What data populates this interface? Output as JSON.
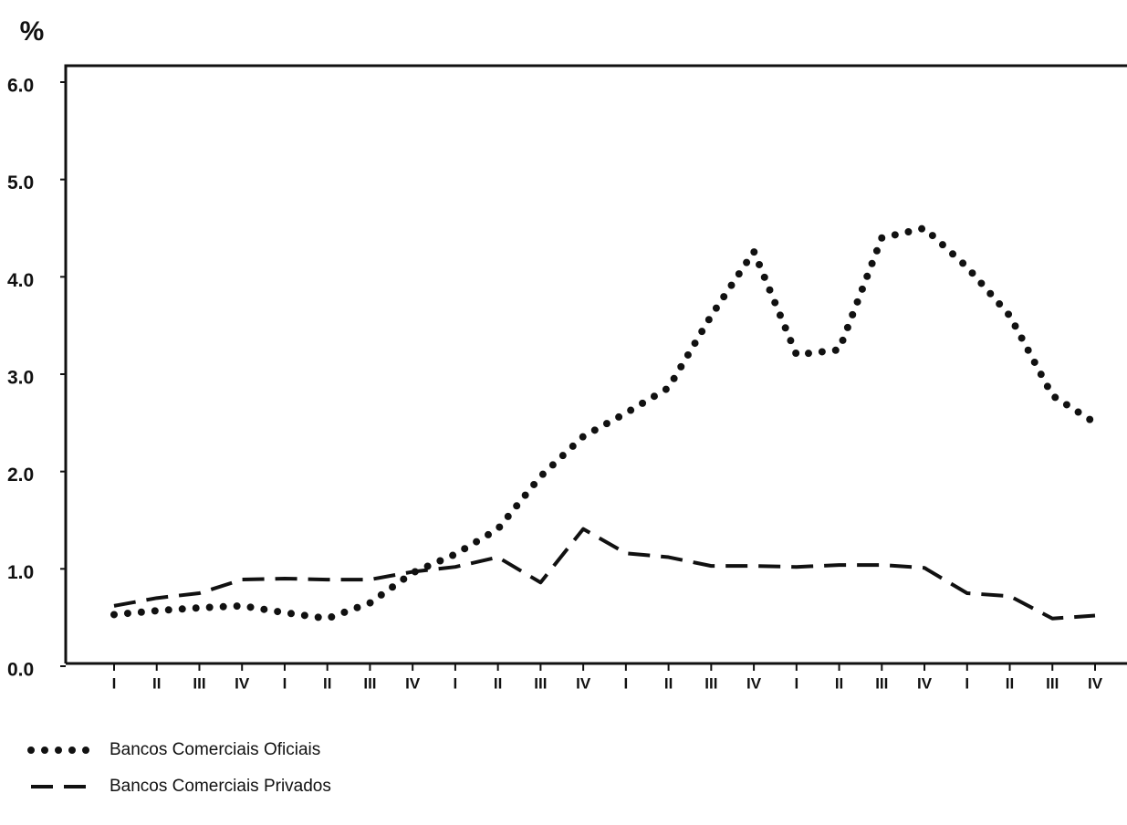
{
  "chart_data": {
    "type": "line",
    "y_label": "%",
    "categories": [
      "I",
      "II",
      "III",
      "IV",
      "I",
      "II",
      "III",
      "IV",
      "I",
      "II",
      "III",
      "IV",
      "I",
      "II",
      "III",
      "IV",
      "I",
      "II",
      "III",
      "IV",
      "I",
      "II",
      "III",
      "IV"
    ],
    "series": [
      {
        "name": "Bancos Comerciais Oficiais",
        "style": "dotted",
        "color": "#111111",
        "values": [
          0.53,
          0.57,
          0.6,
          0.62,
          0.55,
          0.49,
          0.65,
          0.96,
          1.15,
          1.41,
          1.95,
          2.36,
          2.6,
          2.86,
          3.6,
          4.26,
          3.2,
          3.25,
          4.4,
          4.5,
          4.1,
          3.6,
          2.78,
          2.5
        ]
      },
      {
        "name": "Bancos Comerciais Privados",
        "style": "dashed",
        "color": "#111111",
        "values": [
          0.62,
          0.7,
          0.75,
          0.89,
          0.9,
          0.89,
          0.89,
          0.97,
          1.02,
          1.12,
          0.86,
          1.41,
          1.16,
          1.12,
          1.03,
          1.03,
          1.02,
          1.04,
          1.04,
          1.01,
          0.75,
          0.72,
          0.49,
          0.52
        ]
      }
    ],
    "ylim": [
      0,
      6
    ],
    "yticks": [
      {
        "value": 0,
        "label": "0.0"
      },
      {
        "value": 1,
        "label": "1.0"
      },
      {
        "value": 2,
        "label": "2.0"
      },
      {
        "value": 3,
        "label": "3.0"
      },
      {
        "value": 4,
        "label": "4.0"
      },
      {
        "value": 5,
        "label": "5.0"
      },
      {
        "value": 6,
        "label": "6.0"
      }
    ],
    "grid": false
  }
}
